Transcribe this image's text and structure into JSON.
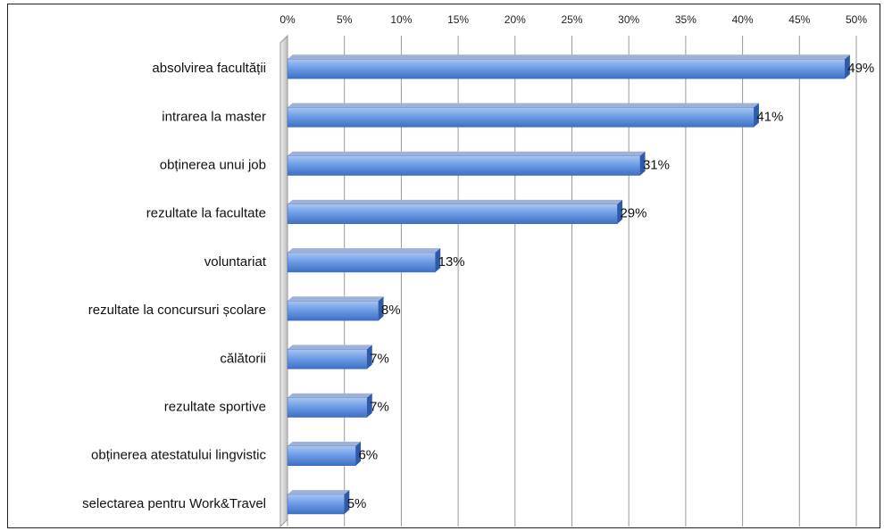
{
  "chart_data": {
    "type": "bar",
    "orientation": "horizontal",
    "categories": [
      "absolvirea facultății",
      "intrarea la master",
      "obținerea unui job",
      "rezultate la facultate",
      "voluntariat",
      "rezultate la concursuri școlare",
      "călătorii",
      "rezultate sportive",
      "obținerea atestatului  lingvistic",
      "selectarea pentru Work&Travel"
    ],
    "values": [
      49,
      41,
      31,
      29,
      13,
      8,
      7,
      7,
      6,
      5
    ],
    "data_labels": [
      "49%",
      "41%",
      "31%",
      "29%",
      "13%",
      "8%",
      "7%",
      "7%",
      "6%",
      "5%"
    ],
    "x_ticks": [
      0,
      5,
      10,
      15,
      20,
      25,
      30,
      35,
      40,
      45,
      50
    ],
    "x_tick_labels": [
      "0%",
      "5%",
      "10%",
      "15%",
      "20%",
      "25%",
      "30%",
      "35%",
      "40%",
      "45%",
      "50%"
    ],
    "xlim": [
      0,
      50
    ],
    "axis_position": "top",
    "grid": true,
    "legend": "none",
    "title": "",
    "xlabel": "",
    "ylabel": "",
    "colors": {
      "bar_top": "#a9c6f2",
      "bar_mid": "#6f9ee6",
      "bar_bottom": "#3f6fc4",
      "bar_end": "#2f5aa8",
      "bar_shadow": "#9fb2d6",
      "grid": "#9a9a9a",
      "wall": "#d4d4d4"
    }
  }
}
